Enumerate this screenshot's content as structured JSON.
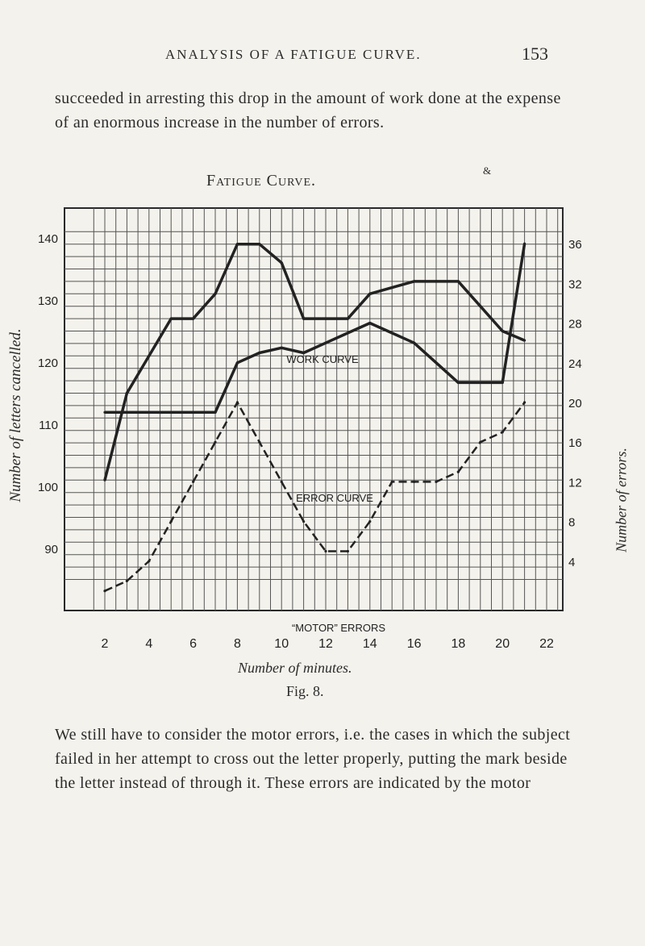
{
  "page": {
    "running_title": "ANALYSIS OF A FATIGUE CURVE.",
    "page_number": "153",
    "paragraph_top": "succeeded in arresting this drop in the amount of work done at the expense of an enormous increase in the number of errors.",
    "paragraph_bottom": "We still have to consider the motor errors, i.e. the cases in which the subject failed in her attempt to cross out the letter properly, putting the mark beside the letter instead of through it. These errors are indicated by the motor"
  },
  "figure": {
    "title": "Fatigue Curve.",
    "caption": "Fig. 8.",
    "mark": "&",
    "x_axis_label": "Number of minutes.",
    "left_axis_label": "Number of letters cancelled.",
    "right_axis_label": "Number of errors."
  },
  "chart_data": {
    "type": "line",
    "title": "Fatigue Curve.",
    "xlabel": "Number of minutes.",
    "ylabel_left": "Number of letters cancelled.",
    "ylabel_right": "Number of errors.",
    "x_ticks": [
      "2",
      "4",
      "6",
      "8",
      "10",
      "12",
      "14",
      "16",
      "18",
      "20",
      "22"
    ],
    "y_left_ticks": [
      "140",
      "130",
      "120",
      "110",
      "100",
      "90"
    ],
    "y_right_ticks": [
      "36",
      "32",
      "28",
      "24",
      "20",
      "16",
      "12",
      "8",
      "4"
    ],
    "xlim": [
      1,
      23
    ],
    "ylim_left": [
      80,
      142
    ],
    "ylim_right": [
      0,
      38
    ],
    "grid": true,
    "series": [
      {
        "name": "WORK CURVE",
        "axis": "left",
        "style": "solid",
        "x": [
          2,
          3,
          5,
          6,
          7,
          8,
          9,
          10,
          11,
          12,
          13,
          14,
          15,
          16,
          17,
          18,
          19,
          20,
          21
        ],
        "y": [
          101,
          115,
          127,
          127,
          131,
          139,
          139,
          136,
          127,
          127,
          127,
          131,
          132,
          133,
          133,
          133,
          129,
          125,
          123.5
        ]
      },
      {
        "name": "ERROR CURVE",
        "axis": "right",
        "style": "solid",
        "x": [
          2,
          3,
          4,
          5,
          6,
          7,
          8,
          9,
          10,
          11,
          12,
          13,
          14,
          15,
          16,
          17,
          18,
          19,
          20,
          21
        ],
        "y": [
          19,
          19,
          19,
          19,
          19,
          19,
          24,
          25,
          25.5,
          25,
          26,
          27,
          28,
          27,
          26,
          24,
          22,
          22,
          22,
          36
        ]
      },
      {
        "name": "“MOTOR” ERRORS",
        "axis": "right",
        "style": "dashed",
        "x": [
          2,
          3,
          4,
          5,
          6,
          7,
          8,
          9,
          10,
          11,
          12,
          13,
          14,
          15,
          16,
          17,
          18,
          19,
          20,
          21
        ],
        "y": [
          1,
          2,
          4,
          8,
          12,
          16,
          20,
          16,
          12,
          8,
          5,
          5,
          8,
          12,
          12,
          12,
          13,
          16,
          17,
          20
        ]
      }
    ],
    "annotations": [
      "WORK CURVE",
      "ERROR CURVE",
      "“MOTOR” ERRORS"
    ]
  }
}
